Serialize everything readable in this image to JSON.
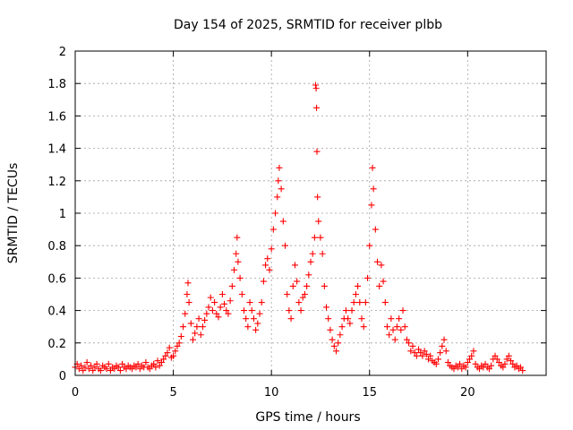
{
  "chart_data": {
    "type": "scatter",
    "title": "Day 154 of 2025, SRMTID for receiver plbb",
    "xlabel": "GPS time / hours",
    "ylabel": "SRMTID / TECUs",
    "xlim": [
      0,
      24
    ],
    "ylim": [
      0,
      2
    ],
    "x_ticks": [
      0,
      5,
      10,
      15,
      20
    ],
    "y_ticks": [
      0,
      0.2,
      0.4,
      0.6,
      0.8,
      1,
      1.2,
      1.4,
      1.6,
      1.8,
      2
    ],
    "x_tick_labels": [
      "0",
      "5",
      "10",
      "15",
      "20"
    ],
    "y_tick_labels": [
      "0",
      "0.2",
      "0.4",
      "0.6",
      "0.8",
      "1",
      "1.2",
      "1.4",
      "1.6",
      "1.8",
      "2"
    ],
    "grid": true,
    "marker": "+",
    "color": "#ff0000",
    "series": [
      {
        "name": "SRMTID",
        "points": [
          [
            0.0,
            0.05
          ],
          [
            0.1,
            0.07
          ],
          [
            0.2,
            0.04
          ],
          [
            0.3,
            0.06
          ],
          [
            0.4,
            0.03
          ],
          [
            0.5,
            0.05
          ],
          [
            0.6,
            0.08
          ],
          [
            0.7,
            0.04
          ],
          [
            0.8,
            0.06
          ],
          [
            0.9,
            0.03
          ],
          [
            1.0,
            0.05
          ],
          [
            1.1,
            0.07
          ],
          [
            1.2,
            0.04
          ],
          [
            1.3,
            0.03
          ],
          [
            1.4,
            0.06
          ],
          [
            1.5,
            0.05
          ],
          [
            1.6,
            0.04
          ],
          [
            1.7,
            0.07
          ],
          [
            1.8,
            0.03
          ],
          [
            1.9,
            0.05
          ],
          [
            2.0,
            0.04
          ],
          [
            2.1,
            0.06
          ],
          [
            2.2,
            0.05
          ],
          [
            2.3,
            0.03
          ],
          [
            2.4,
            0.07
          ],
          [
            2.5,
            0.05
          ],
          [
            2.6,
            0.04
          ],
          [
            2.7,
            0.06
          ],
          [
            2.8,
            0.05
          ],
          [
            2.9,
            0.04
          ],
          [
            3.0,
            0.06
          ],
          [
            3.1,
            0.05
          ],
          [
            3.2,
            0.07
          ],
          [
            3.3,
            0.04
          ],
          [
            3.4,
            0.06
          ],
          [
            3.5,
            0.05
          ],
          [
            3.6,
            0.08
          ],
          [
            3.7,
            0.05
          ],
          [
            3.8,
            0.04
          ],
          [
            3.9,
            0.06
          ],
          [
            4.0,
            0.07
          ],
          [
            4.1,
            0.05
          ],
          [
            4.2,
            0.09
          ],
          [
            4.3,
            0.06
          ],
          [
            4.4,
            0.08
          ],
          [
            4.5,
            0.1
          ],
          [
            4.6,
            0.12
          ],
          [
            4.7,
            0.14
          ],
          [
            4.8,
            0.17
          ],
          [
            4.9,
            0.11
          ],
          [
            5.0,
            0.12
          ],
          [
            5.1,
            0.15
          ],
          [
            5.2,
            0.18
          ],
          [
            5.3,
            0.2
          ],
          [
            5.4,
            0.24
          ],
          [
            5.5,
            0.3
          ],
          [
            5.6,
            0.38
          ],
          [
            5.7,
            0.5
          ],
          [
            5.75,
            0.57
          ],
          [
            5.8,
            0.45
          ],
          [
            5.9,
            0.32
          ],
          [
            6.0,
            0.22
          ],
          [
            6.1,
            0.26
          ],
          [
            6.2,
            0.3
          ],
          [
            6.3,
            0.35
          ],
          [
            6.4,
            0.25
          ],
          [
            6.5,
            0.3
          ],
          [
            6.6,
            0.34
          ],
          [
            6.7,
            0.38
          ],
          [
            6.8,
            0.42
          ],
          [
            6.9,
            0.48
          ],
          [
            7.0,
            0.4
          ],
          [
            7.1,
            0.45
          ],
          [
            7.2,
            0.38
          ],
          [
            7.3,
            0.36
          ],
          [
            7.4,
            0.42
          ],
          [
            7.5,
            0.5
          ],
          [
            7.6,
            0.44
          ],
          [
            7.7,
            0.4
          ],
          [
            7.8,
            0.38
          ],
          [
            7.9,
            0.46
          ],
          [
            8.0,
            0.55
          ],
          [
            8.1,
            0.65
          ],
          [
            8.2,
            0.75
          ],
          [
            8.25,
            0.85
          ],
          [
            8.3,
            0.7
          ],
          [
            8.4,
            0.6
          ],
          [
            8.5,
            0.5
          ],
          [
            8.6,
            0.4
          ],
          [
            8.7,
            0.35
          ],
          [
            8.8,
            0.3
          ],
          [
            8.9,
            0.45
          ],
          [
            9.0,
            0.4
          ],
          [
            9.1,
            0.35
          ],
          [
            9.2,
            0.28
          ],
          [
            9.3,
            0.32
          ],
          [
            9.4,
            0.38
          ],
          [
            9.5,
            0.45
          ],
          [
            9.6,
            0.58
          ],
          [
            9.7,
            0.68
          ],
          [
            9.8,
            0.72
          ],
          [
            9.9,
            0.65
          ],
          [
            10.0,
            0.78
          ],
          [
            10.1,
            0.9
          ],
          [
            10.2,
            1.0
          ],
          [
            10.3,
            1.1
          ],
          [
            10.35,
            1.2
          ],
          [
            10.4,
            1.28
          ],
          [
            10.5,
            1.15
          ],
          [
            10.6,
            0.95
          ],
          [
            10.7,
            0.8
          ],
          [
            10.8,
            0.5
          ],
          [
            10.9,
            0.4
          ],
          [
            11.0,
            0.35
          ],
          [
            11.1,
            0.55
          ],
          [
            11.2,
            0.68
          ],
          [
            11.3,
            0.58
          ],
          [
            11.4,
            0.45
          ],
          [
            11.5,
            0.4
          ],
          [
            11.6,
            0.48
          ],
          [
            11.7,
            0.5
          ],
          [
            11.8,
            0.55
          ],
          [
            11.9,
            0.62
          ],
          [
            12.0,
            0.7
          ],
          [
            12.1,
            0.75
          ],
          [
            12.2,
            0.85
          ],
          [
            12.25,
            1.79
          ],
          [
            12.28,
            1.77
          ],
          [
            12.3,
            1.65
          ],
          [
            12.32,
            1.38
          ],
          [
            12.35,
            1.1
          ],
          [
            12.4,
            0.95
          ],
          [
            12.5,
            0.85
          ],
          [
            12.6,
            0.75
          ],
          [
            12.7,
            0.55
          ],
          [
            12.8,
            0.42
          ],
          [
            12.9,
            0.35
          ],
          [
            13.0,
            0.28
          ],
          [
            13.1,
            0.22
          ],
          [
            13.2,
            0.18
          ],
          [
            13.3,
            0.15
          ],
          [
            13.4,
            0.2
          ],
          [
            13.5,
            0.25
          ],
          [
            13.6,
            0.3
          ],
          [
            13.7,
            0.35
          ],
          [
            13.8,
            0.4
          ],
          [
            13.9,
            0.35
          ],
          [
            14.0,
            0.32
          ],
          [
            14.1,
            0.4
          ],
          [
            14.2,
            0.45
          ],
          [
            14.3,
            0.5
          ],
          [
            14.4,
            0.55
          ],
          [
            14.5,
            0.45
          ],
          [
            14.6,
            0.35
          ],
          [
            14.7,
            0.3
          ],
          [
            14.8,
            0.45
          ],
          [
            14.9,
            0.6
          ],
          [
            15.0,
            0.8
          ],
          [
            15.1,
            1.05
          ],
          [
            15.15,
            1.28
          ],
          [
            15.2,
            1.15
          ],
          [
            15.3,
            0.9
          ],
          [
            15.4,
            0.7
          ],
          [
            15.5,
            0.55
          ],
          [
            15.6,
            0.68
          ],
          [
            15.7,
            0.58
          ],
          [
            15.8,
            0.45
          ],
          [
            15.9,
            0.3
          ],
          [
            16.0,
            0.25
          ],
          [
            16.1,
            0.35
          ],
          [
            16.2,
            0.28
          ],
          [
            16.3,
            0.22
          ],
          [
            16.4,
            0.3
          ],
          [
            16.5,
            0.35
          ],
          [
            16.6,
            0.28
          ],
          [
            16.7,
            0.4
          ],
          [
            16.8,
            0.3
          ],
          [
            16.9,
            0.22
          ],
          [
            17.0,
            0.2
          ],
          [
            17.1,
            0.15
          ],
          [
            17.2,
            0.18
          ],
          [
            17.3,
            0.14
          ],
          [
            17.4,
            0.12
          ],
          [
            17.5,
            0.16
          ],
          [
            17.6,
            0.14
          ],
          [
            17.7,
            0.12
          ],
          [
            17.8,
            0.15
          ],
          [
            17.9,
            0.13
          ],
          [
            18.0,
            0.1
          ],
          [
            18.1,
            0.12
          ],
          [
            18.2,
            0.09
          ],
          [
            18.3,
            0.08
          ],
          [
            18.4,
            0.07
          ],
          [
            18.5,
            0.1
          ],
          [
            18.6,
            0.14
          ],
          [
            18.7,
            0.18
          ],
          [
            18.8,
            0.22
          ],
          [
            18.9,
            0.15
          ],
          [
            19.0,
            0.08
          ],
          [
            19.1,
            0.06
          ],
          [
            19.2,
            0.05
          ],
          [
            19.3,
            0.04
          ],
          [
            19.4,
            0.06
          ],
          [
            19.5,
            0.05
          ],
          [
            19.6,
            0.07
          ],
          [
            19.7,
            0.04
          ],
          [
            19.8,
            0.06
          ],
          [
            19.9,
            0.05
          ],
          [
            20.0,
            0.08
          ],
          [
            20.1,
            0.1
          ],
          [
            20.2,
            0.12
          ],
          [
            20.3,
            0.15
          ],
          [
            20.4,
            0.07
          ],
          [
            20.5,
            0.05
          ],
          [
            20.6,
            0.04
          ],
          [
            20.7,
            0.06
          ],
          [
            20.8,
            0.05
          ],
          [
            20.9,
            0.07
          ],
          [
            21.0,
            0.05
          ],
          [
            21.1,
            0.04
          ],
          [
            21.2,
            0.06
          ],
          [
            21.3,
            0.1
          ],
          [
            21.4,
            0.12
          ],
          [
            21.5,
            0.1
          ],
          [
            21.6,
            0.08
          ],
          [
            21.7,
            0.06
          ],
          [
            21.8,
            0.05
          ],
          [
            21.9,
            0.07
          ],
          [
            22.0,
            0.1
          ],
          [
            22.1,
            0.12
          ],
          [
            22.2,
            0.09
          ],
          [
            22.3,
            0.07
          ],
          [
            22.4,
            0.05
          ],
          [
            22.5,
            0.06
          ],
          [
            22.6,
            0.04
          ],
          [
            22.7,
            0.05
          ],
          [
            22.8,
            0.03
          ]
        ]
      }
    ]
  }
}
